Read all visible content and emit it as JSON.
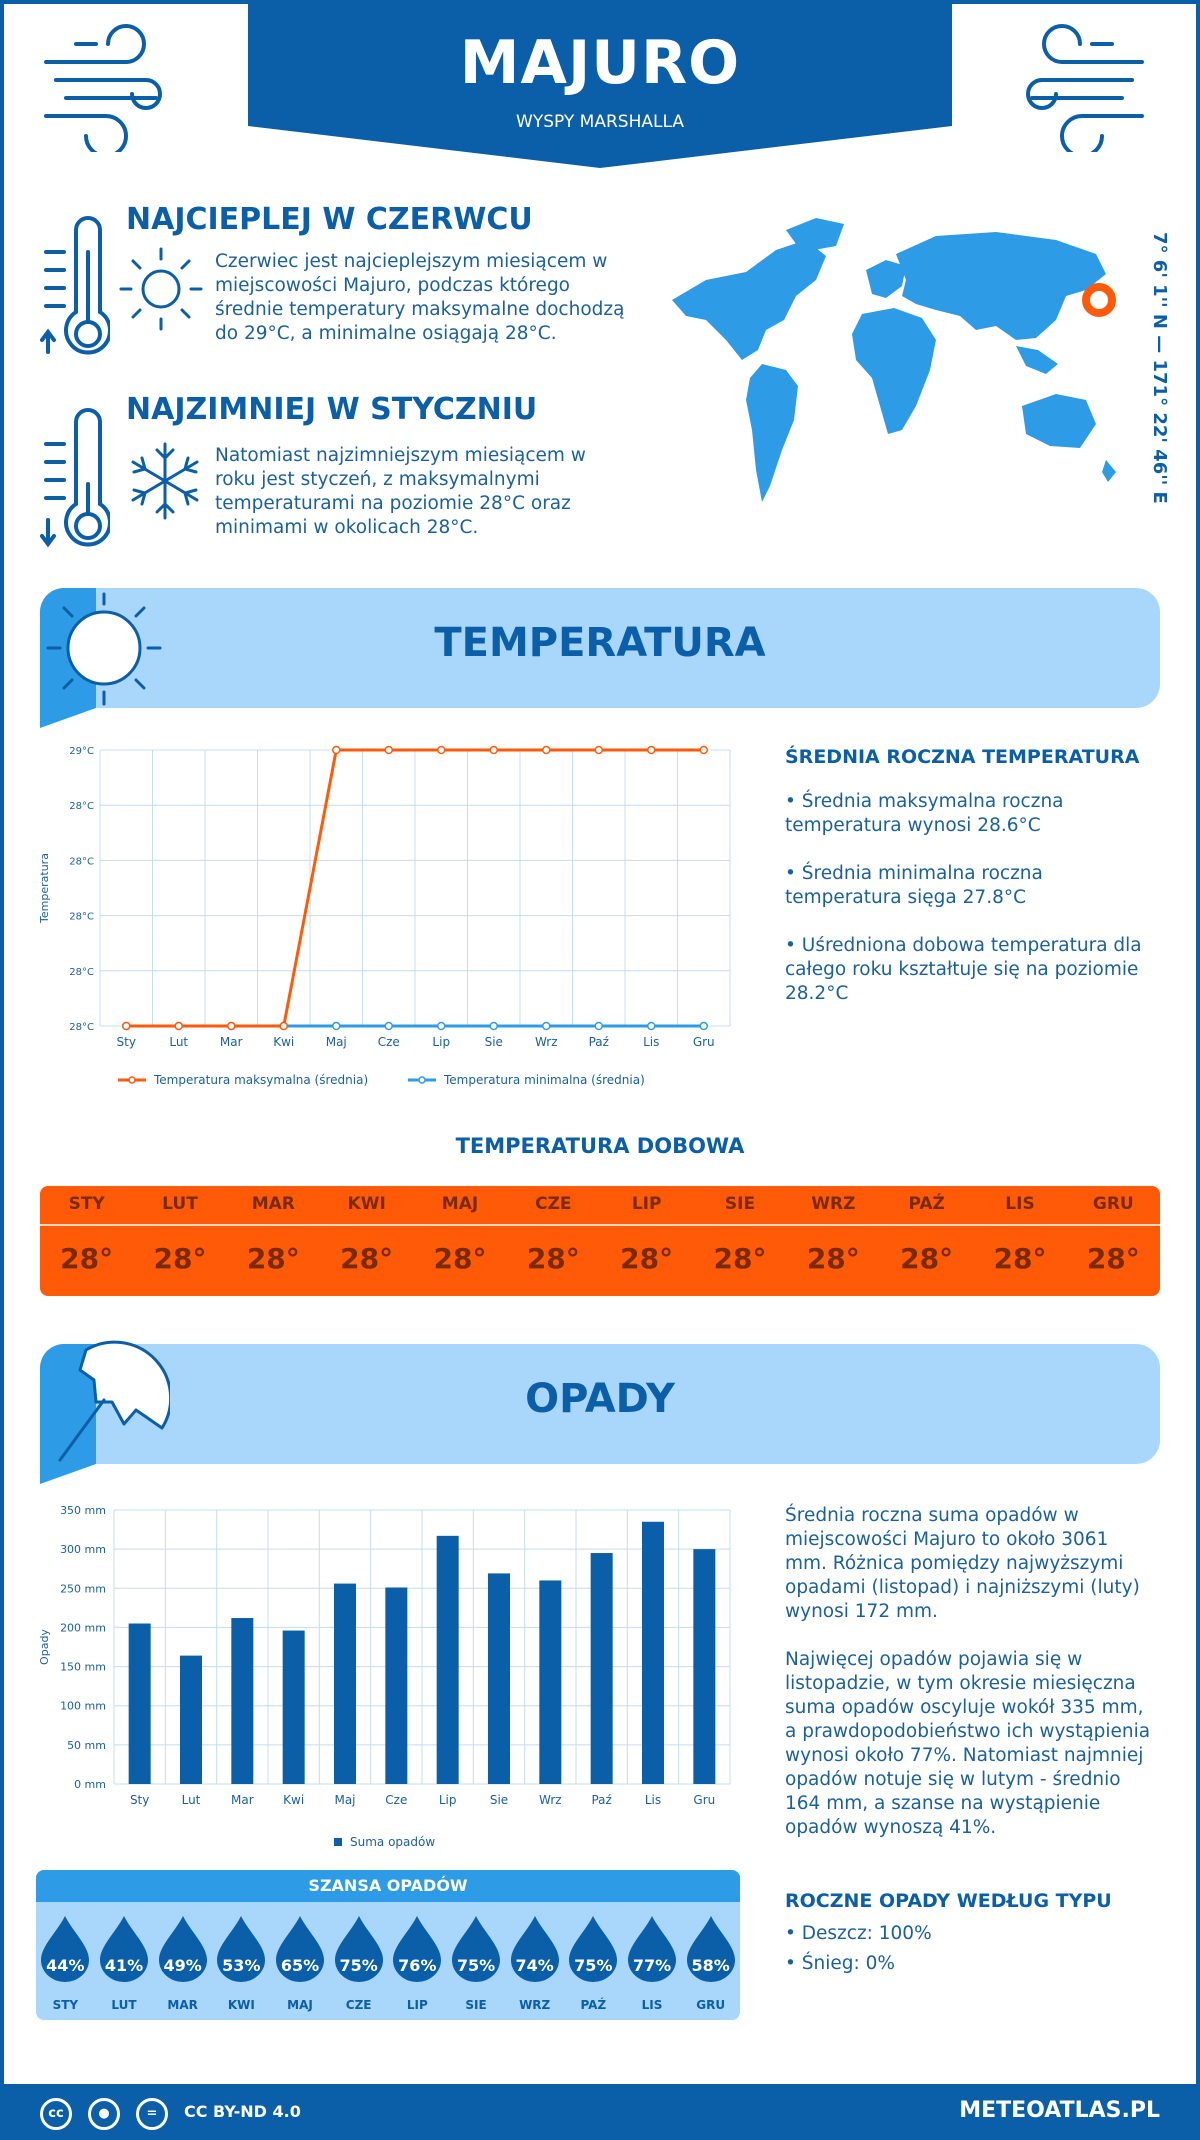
{
  "header": {
    "city": "MAJURO",
    "country": "WYSPY MARSHALLA"
  },
  "hottest": {
    "title": "NAJCIEPLEJ W CZERWCU",
    "text": "Czerwiec jest najcieplejszym miesiącem w miejscowości Majuro, podczas którego średnie temperatury maksymalne dochodzą do 29°C, a minimalne osiągają 28°C."
  },
  "coldest": {
    "title": "NAJZIMNIEJ W STYCZNIU",
    "text": "Natomiast najzimniejszym miesiącem w roku jest styczeń, z maksymalnymi temperaturami na poziomie 28°C oraz minimami w okolicach 28°C."
  },
  "coordinates": "7° 6' 1'' N — 171° 22' 46'' E",
  "colors": {
    "primary": "#0b5ea8",
    "light": "#a9d6fb",
    "orange": "#ff5a08",
    "mid": "#2e9be6"
  },
  "temperature_section": {
    "title": "TEMPERATURA",
    "side_heading": "ŚREDNIA ROCZNA TEMPERATURA",
    "bullets": [
      "• Średnia maksymalna roczna temperatura wynosi 28.6°C",
      "• Średnia minimalna roczna temperatura sięga 27.8°C",
      "• Uśredniona dobowa temperatura dla całego roku kształtuje się na poziomie 28.2°C"
    ],
    "daily_title": "TEMPERATURA DOBOWA",
    "daily": [
      {
        "month": "STY",
        "value": "28°"
      },
      {
        "month": "LUT",
        "value": "28°"
      },
      {
        "month": "MAR",
        "value": "28°"
      },
      {
        "month": "KWI",
        "value": "28°"
      },
      {
        "month": "MAJ",
        "value": "28°"
      },
      {
        "month": "CZE",
        "value": "28°"
      },
      {
        "month": "LIP",
        "value": "28°"
      },
      {
        "month": "SIE",
        "value": "28°"
      },
      {
        "month": "WRZ",
        "value": "28°"
      },
      {
        "month": "PAŹ",
        "value": "28°"
      },
      {
        "month": "LIS",
        "value": "28°"
      },
      {
        "month": "GRU",
        "value": "28°"
      }
    ]
  },
  "precip_section": {
    "title": "OPADY",
    "text1": "Średnia roczna suma opadów w miejscowości Majuro to około 3061 mm. Różnica pomiędzy najwyższymi opadami (listopad) i najniższymi (luty) wynosi 172 mm.",
    "text2": "Najwięcej opadów pojawia się w listopadzie, w tym okresie miesięczna suma opadów oscyluje wokół 335 mm, a prawdopodobieństwo ich wystąpienia wynosi około 77%. Natomiast najmniej opadów notuje się w lutym - średnio 164 mm, a szanse na wystąpienie opadów wynoszą 41%.",
    "chance_title": "SZANSA OPADÓW",
    "chance": [
      {
        "month": "STY",
        "value": "44%"
      },
      {
        "month": "LUT",
        "value": "41%"
      },
      {
        "month": "MAR",
        "value": "49%"
      },
      {
        "month": "KWI",
        "value": "53%"
      },
      {
        "month": "MAJ",
        "value": "65%"
      },
      {
        "month": "CZE",
        "value": "75%"
      },
      {
        "month": "LIP",
        "value": "76%"
      },
      {
        "month": "SIE",
        "value": "75%"
      },
      {
        "month": "WRZ",
        "value": "74%"
      },
      {
        "month": "PAŹ",
        "value": "75%"
      },
      {
        "month": "LIS",
        "value": "77%"
      },
      {
        "month": "GRU",
        "value": "58%"
      }
    ],
    "type_heading": "ROCZNE OPADY WEDŁUG TYPU",
    "types": [
      "• Deszcz: 100%",
      "• Śnieg: 0%"
    ]
  },
  "chart_data": [
    {
      "type": "line",
      "categories": [
        "Sty",
        "Lut",
        "Mar",
        "Kwi",
        "Maj",
        "Cze",
        "Lip",
        "Sie",
        "Wrz",
        "Paź",
        "Lis",
        "Gru"
      ],
      "series": [
        {
          "name": "Temperatura maksymalna (średnia)",
          "color": "#ff5a08",
          "values": [
            28,
            28,
            28,
            28,
            29,
            29,
            29,
            29,
            29,
            29,
            29,
            29
          ]
        },
        {
          "name": "Temperatura minimalna (średnia)",
          "color": "#2e9be6",
          "values": [
            28,
            28,
            28,
            28,
            28,
            28,
            28,
            28,
            28,
            28,
            28,
            28
          ]
        }
      ],
      "ylabel": "Temperatura",
      "ylim": [
        28,
        29
      ],
      "yticks": [
        "28°C",
        "28°C",
        "28°C",
        "28°C",
        "28°C",
        "29°C"
      ],
      "grid": true,
      "legend": "bottom"
    },
    {
      "type": "bar",
      "categories": [
        "Sty",
        "Lut",
        "Mar",
        "Kwi",
        "Maj",
        "Cze",
        "Lip",
        "Sie",
        "Wrz",
        "Paź",
        "Lis",
        "Gru"
      ],
      "series": [
        {
          "name": "Suma opadów",
          "color": "#0b5ea8",
          "values": [
            205,
            164,
            212,
            196,
            256,
            251,
            317,
            269,
            260,
            295,
            335,
            300
          ]
        }
      ],
      "ylabel": "Opady",
      "ylim": [
        0,
        350
      ],
      "yticks": [
        "0 mm",
        "50 mm",
        "100 mm",
        "150 mm",
        "200 mm",
        "250 mm",
        "300 mm",
        "350 mm"
      ],
      "grid": true,
      "legend": "bottom"
    }
  ],
  "footer": {
    "license": "CC BY-ND 4.0",
    "site": "METEOATLAS.PL",
    "icons": [
      "cc",
      "by",
      "nd"
    ]
  }
}
